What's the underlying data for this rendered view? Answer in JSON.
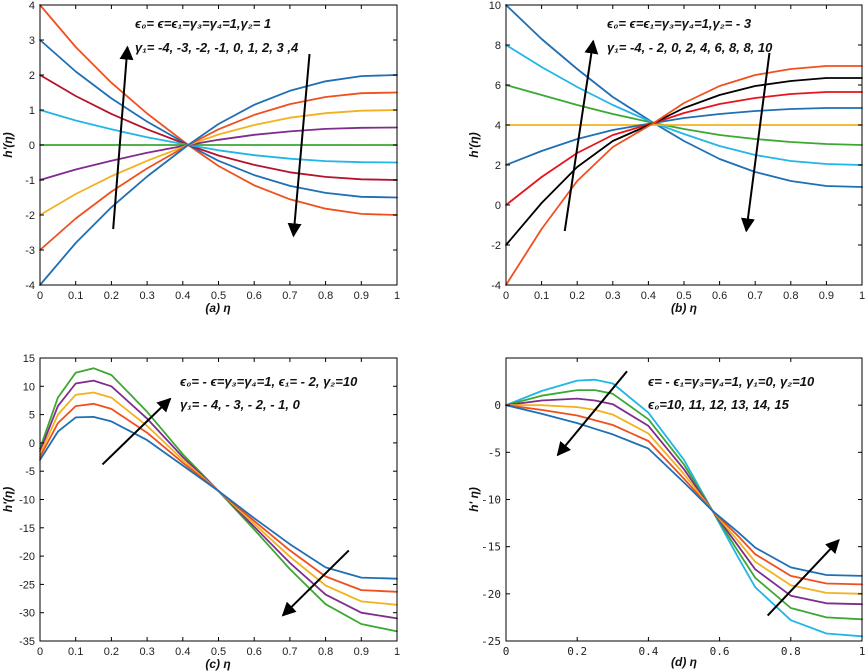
{
  "chart_data": [
    {
      "id": "a",
      "type": "line",
      "xlabel": "(a) η",
      "ylabel": "h'(η)",
      "xlim": [
        0,
        1
      ],
      "ylim": [
        -4,
        4
      ],
      "xticks": [
        0,
        0.1,
        0.2,
        0.3,
        0.4,
        0.5,
        0.6,
        0.7,
        0.8,
        0.9,
        1
      ],
      "yticks": [
        -4,
        -3,
        -2,
        -1,
        0,
        1,
        2,
        3,
        4
      ],
      "xtick_labels": [
        "0",
        "0.1",
        "0.2",
        "0.3",
        "0.4",
        "0.5",
        "0.6",
        "0.7",
        "0.8",
        "0.9",
        "1"
      ],
      "ytick_labels": [
        "-4",
        "-3",
        "-2",
        "-1",
        "0",
        "1",
        "2",
        "3",
        "4"
      ],
      "annotation": [
        "ϵ₀= ϵ=ϵ₁=γ₃=γ₄=1,γ₂= 1",
        "γ₁= -4, -3, -2, -1,  0, 1, 2, 3 ,4"
      ],
      "arrows": [
        {
          "from": [
            0.205,
            -2.4
          ],
          "to": [
            0.245,
            2.8
          ]
        },
        {
          "from": [
            0.755,
            2.6
          ],
          "to": [
            0.71,
            -2.6
          ]
        }
      ],
      "series": [
        {
          "name": "γ₁=4",
          "color": "#F0501E",
          "x": [
            0,
            0.1,
            0.2,
            0.3,
            0.415,
            0.5,
            0.6,
            0.7,
            0.8,
            0.9,
            1
          ],
          "y": [
            4.0,
            2.8,
            1.78,
            0.9,
            0.0,
            -0.6,
            -1.15,
            -1.55,
            -1.82,
            -1.97,
            -2.0
          ]
        },
        {
          "name": "γ₁=3",
          "color": "#1F6FB4",
          "x": [
            0,
            0.1,
            0.2,
            0.3,
            0.415,
            0.5,
            0.6,
            0.7,
            0.8,
            0.9,
            1
          ],
          "y": [
            3.0,
            2.1,
            1.33,
            0.67,
            0.0,
            -0.45,
            -0.86,
            -1.17,
            -1.37,
            -1.48,
            -1.5
          ]
        },
        {
          "name": "γ₁=2",
          "color": "#B5122B",
          "x": [
            0,
            0.1,
            0.2,
            0.3,
            0.415,
            0.5,
            0.6,
            0.7,
            0.8,
            0.9,
            1
          ],
          "y": [
            2.0,
            1.4,
            0.89,
            0.45,
            0.0,
            -0.3,
            -0.57,
            -0.78,
            -0.91,
            -0.98,
            -1.0
          ]
        },
        {
          "name": "γ₁=1",
          "color": "#22B5E8",
          "x": [
            0,
            0.1,
            0.2,
            0.3,
            0.415,
            0.5,
            0.6,
            0.7,
            0.8,
            0.9,
            1
          ],
          "y": [
            1.0,
            0.7,
            0.45,
            0.22,
            0.0,
            -0.15,
            -0.29,
            -0.39,
            -0.46,
            -0.49,
            -0.5
          ]
        },
        {
          "name": "γ₁=0",
          "color": "#3CA832",
          "x": [
            0,
            1
          ],
          "y": [
            0.0,
            0.0
          ]
        },
        {
          "name": "γ₁=-1",
          "color": "#7E2D8E",
          "x": [
            0,
            0.1,
            0.2,
            0.3,
            0.415,
            0.5,
            0.6,
            0.7,
            0.8,
            0.9,
            1
          ],
          "y": [
            -1.0,
            -0.7,
            -0.45,
            -0.22,
            0.0,
            0.15,
            0.29,
            0.39,
            0.46,
            0.49,
            0.5
          ]
        },
        {
          "name": "γ₁=-2",
          "color": "#F2B21E",
          "x": [
            0,
            0.1,
            0.2,
            0.3,
            0.415,
            0.5,
            0.6,
            0.7,
            0.8,
            0.9,
            1
          ],
          "y": [
            -2.0,
            -1.4,
            -0.89,
            -0.45,
            0.0,
            0.3,
            0.57,
            0.78,
            0.91,
            0.98,
            1.0
          ]
        },
        {
          "name": "γ₁=-3",
          "color": "#F0501E",
          "x": [
            0,
            0.1,
            0.2,
            0.3,
            0.415,
            0.5,
            0.6,
            0.7,
            0.8,
            0.9,
            1
          ],
          "y": [
            -3.0,
            -2.1,
            -1.33,
            -0.67,
            0.0,
            0.45,
            0.86,
            1.17,
            1.37,
            1.48,
            1.5
          ]
        },
        {
          "name": "γ₁=-4",
          "color": "#1F6FB4",
          "x": [
            0,
            0.1,
            0.2,
            0.3,
            0.415,
            0.5,
            0.6,
            0.7,
            0.8,
            0.9,
            1
          ],
          "y": [
            -4.0,
            -2.8,
            -1.78,
            -0.9,
            0.0,
            0.6,
            1.15,
            1.55,
            1.82,
            1.97,
            2.0
          ]
        }
      ]
    },
    {
      "id": "b",
      "type": "line",
      "xlabel": "(b) η",
      "ylabel": "h'(η)",
      "xlim": [
        0,
        1
      ],
      "ylim": [
        -4,
        10
      ],
      "xticks": [
        0,
        0.1,
        0.2,
        0.3,
        0.4,
        0.5,
        0.6,
        0.7,
        0.8,
        0.9,
        1
      ],
      "yticks": [
        -4,
        -2,
        0,
        2,
        4,
        6,
        8,
        10
      ],
      "xtick_labels": [
        "0",
        "0.1",
        "0.2",
        "0.3",
        "0.4",
        "0.5",
        "0.6",
        "0.7",
        "0.8",
        "0.9",
        "1"
      ],
      "ytick_labels": [
        "-4",
        "-2",
        "0",
        "2",
        "4",
        "6",
        "8",
        "10"
      ],
      "annotation": [
        "ϵ₀= ϵ=ϵ₁=γ₃=γ₄=1,γ₂= - 3",
        "γ₁= -4, - 2, 0, 2, 4, 6, 8, 8, 10"
      ],
      "arrows": [
        {
          "from": [
            0.165,
            -1.3
          ],
          "to": [
            0.245,
            8.2
          ]
        },
        {
          "from": [
            0.74,
            7.6
          ],
          "to": [
            0.675,
            -1.3
          ]
        }
      ],
      "series": [
        {
          "name": "γ₁=10",
          "color": "#1F6FB4",
          "x": [
            0,
            0.1,
            0.2,
            0.3,
            0.415,
            0.5,
            0.6,
            0.7,
            0.8,
            0.9,
            1
          ],
          "y": [
            10.0,
            8.3,
            6.8,
            5.4,
            4.1,
            3.2,
            2.3,
            1.65,
            1.2,
            0.95,
            0.9
          ]
        },
        {
          "name": "γ₁=8",
          "color": "#22B5E8",
          "x": [
            0,
            0.1,
            0.2,
            0.3,
            0.415,
            0.5,
            0.6,
            0.7,
            0.8,
            0.9,
            1
          ],
          "y": [
            8.0,
            6.9,
            5.9,
            5.0,
            4.1,
            3.55,
            2.95,
            2.5,
            2.2,
            2.05,
            2.0
          ]
        },
        {
          "name": "γ₁=6",
          "color": "#3CA832",
          "x": [
            0,
            0.1,
            0.2,
            0.3,
            0.415,
            0.5,
            0.6,
            0.7,
            0.8,
            0.9,
            1
          ],
          "y": [
            6.0,
            5.5,
            5.0,
            4.55,
            4.1,
            3.8,
            3.5,
            3.3,
            3.15,
            3.05,
            3.0
          ]
        },
        {
          "name": "γ₁=4",
          "color": "#F2B21E",
          "x": [
            0,
            1
          ],
          "y": [
            4.0,
            4.0
          ]
        },
        {
          "name": "γ₁=2",
          "color": "#1F6FB4",
          "x": [
            0,
            0.1,
            0.2,
            0.3,
            0.415,
            0.5,
            0.6,
            0.7,
            0.8,
            0.9,
            1
          ],
          "y": [
            2.0,
            2.7,
            3.3,
            3.75,
            4.1,
            4.35,
            4.55,
            4.7,
            4.8,
            4.85,
            4.85
          ]
        },
        {
          "name": "γ₁=0",
          "color": "#E8131B",
          "x": [
            0,
            0.1,
            0.2,
            0.3,
            0.415,
            0.5,
            0.6,
            0.7,
            0.8,
            0.9,
            1
          ],
          "y": [
            0.0,
            1.4,
            2.6,
            3.5,
            4.1,
            4.6,
            5.05,
            5.35,
            5.55,
            5.65,
            5.65
          ]
        },
        {
          "name": "γ₁=-2",
          "color": "#000000",
          "x": [
            0,
            0.1,
            0.2,
            0.3,
            0.415,
            0.5,
            0.6,
            0.7,
            0.8,
            0.9,
            1
          ],
          "y": [
            -2.0,
            0.1,
            1.9,
            3.2,
            4.1,
            4.85,
            5.5,
            5.95,
            6.2,
            6.35,
            6.35
          ]
        },
        {
          "name": "γ₁=-4",
          "color": "#F0501E",
          "x": [
            0,
            0.1,
            0.2,
            0.3,
            0.415,
            0.5,
            0.6,
            0.7,
            0.8,
            0.9,
            1
          ],
          "y": [
            -4.0,
            -1.2,
            1.2,
            2.9,
            4.1,
            5.1,
            5.95,
            6.5,
            6.8,
            6.95,
            6.95
          ]
        }
      ]
    },
    {
      "id": "c",
      "type": "line",
      "xlabel": "(c) η",
      "ylabel": "h'(η)",
      "xlim": [
        0,
        1
      ],
      "ylim": [
        -35,
        15
      ],
      "xticks": [
        0,
        0.1,
        0.2,
        0.3,
        0.4,
        0.5,
        0.6,
        0.7,
        0.8,
        0.9,
        1
      ],
      "yticks": [
        -35,
        -30,
        -25,
        -20,
        -15,
        -10,
        -5,
        0,
        5,
        10,
        15
      ],
      "xtick_labels": [
        "0",
        "0.1",
        "0.2",
        "0.3",
        "0.4",
        "0.5",
        "0.6",
        "0.7",
        "0.8",
        "0.9",
        "1"
      ],
      "ytick_labels": [
        "-35",
        "-30",
        "-25",
        "-20",
        "-15",
        "-10",
        "-5",
        "0",
        "5",
        "10",
        "15"
      ],
      "annotation": [
        "ϵ₀= - ϵ=γ₃=γ₄=1, ϵ₁= - 2, γ₂=10",
        "γ₁= - 4, - 3, - 2, - 1, 0"
      ],
      "arrows": [
        {
          "from": [
            0.175,
            -3.8
          ],
          "to": [
            0.365,
            7.8
          ]
        },
        {
          "from": [
            0.865,
            -19.0
          ],
          "to": [
            0.68,
            -30.5
          ]
        }
      ],
      "series": [
        {
          "name": "γ₁=-4",
          "color": "#3CA832",
          "x": [
            0,
            0.05,
            0.1,
            0.15,
            0.2,
            0.3,
            0.4,
            0.5,
            0.6,
            0.7,
            0.8,
            0.9,
            1
          ],
          "y": [
            -1.0,
            8.0,
            12.4,
            13.2,
            12.0,
            5.5,
            -2.0,
            -8.5,
            -15.3,
            -22.3,
            -28.5,
            -32.0,
            -33.3
          ]
        },
        {
          "name": "γ₁=-3",
          "color": "#7E2D8E",
          "x": [
            0,
            0.05,
            0.1,
            0.15,
            0.2,
            0.3,
            0.4,
            0.5,
            0.6,
            0.7,
            0.8,
            0.9,
            1
          ],
          "y": [
            -1.5,
            6.5,
            10.5,
            11.0,
            10.0,
            4.3,
            -2.5,
            -8.5,
            -14.8,
            -21.2,
            -26.8,
            -30.0,
            -31.0
          ]
        },
        {
          "name": "γ₁=-2",
          "color": "#F2B21E",
          "x": [
            0,
            0.05,
            0.1,
            0.15,
            0.2,
            0.3,
            0.4,
            0.5,
            0.6,
            0.7,
            0.8,
            0.9,
            1
          ],
          "y": [
            -2.0,
            5.0,
            8.5,
            8.9,
            8.0,
            3.0,
            -3.0,
            -8.5,
            -14.3,
            -20.1,
            -25.2,
            -28.0,
            -28.6
          ]
        },
        {
          "name": "γ₁=-1",
          "color": "#F0501E",
          "x": [
            0,
            0.05,
            0.1,
            0.15,
            0.2,
            0.3,
            0.4,
            0.5,
            0.6,
            0.7,
            0.8,
            0.9,
            1
          ],
          "y": [
            -2.5,
            3.5,
            6.5,
            6.9,
            6.0,
            1.8,
            -3.5,
            -8.5,
            -13.8,
            -19.0,
            -23.6,
            -26.0,
            -26.3
          ]
        },
        {
          "name": "γ₁=0",
          "color": "#1F6FB4",
          "x": [
            0,
            0.05,
            0.1,
            0.15,
            0.2,
            0.3,
            0.4,
            0.5,
            0.6,
            0.7,
            0.8,
            0.9,
            1
          ],
          "y": [
            -3.0,
            2.0,
            4.5,
            4.6,
            3.8,
            0.5,
            -4.0,
            -8.5,
            -13.3,
            -17.9,
            -22.0,
            -23.8,
            -24.0
          ]
        }
      ]
    },
    {
      "id": "d",
      "type": "line",
      "xlabel": "(d) η",
      "ylabel": "h' η)",
      "xlim": [
        0,
        1
      ],
      "ylim": [
        -25,
        5
      ],
      "xticks": [
        0,
        0.2,
        0.4,
        0.6,
        0.8,
        1
      ],
      "yticks": [
        -25,
        -20,
        -15,
        -10,
        -5,
        0
      ],
      "xtick_labels": [
        "0",
        "0.2",
        "0.4",
        "0.6",
        "0.8",
        "1"
      ],
      "ytick_labels": [
        "-25",
        "-20",
        "-15",
        "-10",
        "-5",
        "0"
      ],
      "annotation": [
        "ϵ= - ϵ₁=γ₃=γ₄=1, γ₁=0, γ₂=10",
        "ϵ₀=10, 11, 12, 13, 14, 15"
      ],
      "arrows": [
        {
          "from": [
            0.34,
            3.6
          ],
          "to": [
            0.145,
            -5.3
          ]
        },
        {
          "from": [
            0.735,
            -22.3
          ],
          "to": [
            0.935,
            -14.3
          ]
        }
      ],
      "series": [
        {
          "name": "ϵ₀=15",
          "color": "#22B5E8",
          "x": [
            0,
            0.1,
            0.2,
            0.25,
            0.3,
            0.4,
            0.5,
            0.58,
            0.65,
            0.7,
            0.8,
            0.9,
            1
          ],
          "y": [
            0.0,
            1.5,
            2.6,
            2.7,
            2.3,
            -0.8,
            -5.8,
            -11.2,
            -16.0,
            -19.3,
            -22.8,
            -24.2,
            -24.5
          ]
        },
        {
          "name": "ϵ₀=14",
          "color": "#3CA832",
          "x": [
            0,
            0.1,
            0.2,
            0.25,
            0.3,
            0.4,
            0.5,
            0.58,
            0.65,
            0.7,
            0.8,
            0.9,
            1
          ],
          "y": [
            0.0,
            1.0,
            1.6,
            1.6,
            1.2,
            -1.5,
            -6.3,
            -11.2,
            -15.4,
            -18.3,
            -21.5,
            -22.5,
            -22.7
          ]
        },
        {
          "name": "ϵ₀=13",
          "color": "#7E2D8E",
          "x": [
            0,
            0.1,
            0.2,
            0.25,
            0.3,
            0.4,
            0.5,
            0.58,
            0.65,
            0.7,
            0.8,
            0.9,
            1
          ],
          "y": [
            0.0,
            0.5,
            0.7,
            0.5,
            0.1,
            -2.2,
            -6.8,
            -11.2,
            -14.8,
            -17.4,
            -20.2,
            -21.0,
            -21.1
          ]
        },
        {
          "name": "ϵ₀=12",
          "color": "#F2B21E",
          "x": [
            0,
            0.1,
            0.2,
            0.25,
            0.3,
            0.4,
            0.5,
            0.58,
            0.65,
            0.7,
            0.8,
            0.9,
            1
          ],
          "y": [
            0.0,
            0.0,
            -0.2,
            -0.5,
            -1.0,
            -3.0,
            -7.3,
            -11.2,
            -14.3,
            -16.6,
            -19.1,
            -19.9,
            -20.0
          ]
        },
        {
          "name": "ϵ₀=11",
          "color": "#F0501E",
          "x": [
            0,
            0.1,
            0.2,
            0.25,
            0.3,
            0.4,
            0.5,
            0.58,
            0.65,
            0.7,
            0.8,
            0.9,
            1
          ],
          "y": [
            0.0,
            -0.5,
            -1.1,
            -1.6,
            -2.1,
            -3.8,
            -7.8,
            -11.2,
            -13.8,
            -15.8,
            -18.1,
            -18.9,
            -19.0
          ]
        },
        {
          "name": "ϵ₀=10",
          "color": "#1F6FB4",
          "x": [
            0,
            0.1,
            0.2,
            0.25,
            0.3,
            0.4,
            0.5,
            0.58,
            0.65,
            0.7,
            0.8,
            0.9,
            1
          ],
          "y": [
            0.0,
            -0.9,
            -1.9,
            -2.5,
            -3.1,
            -4.6,
            -8.2,
            -11.2,
            -13.4,
            -15.1,
            -17.2,
            -18.0,
            -18.1
          ]
        }
      ]
    }
  ]
}
